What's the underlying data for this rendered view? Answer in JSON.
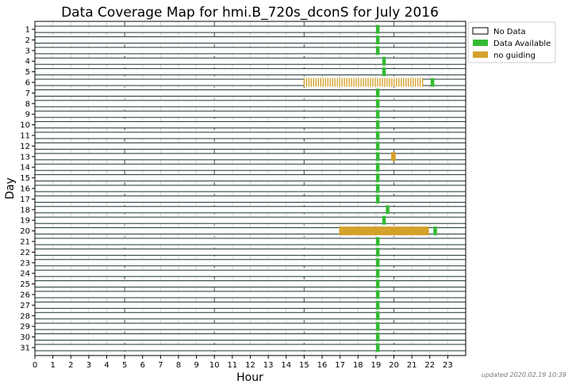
{
  "chart_data": {
    "type": "timeline",
    "title": "Data Coverage Map for hmi.B_720s_dconS for July 2016",
    "xlabel": "Hour",
    "ylabel": "Day",
    "xlim": [
      0,
      24
    ],
    "x_ticks": [
      "0",
      "1",
      "2",
      "3",
      "4",
      "5",
      "6",
      "7",
      "8",
      "9",
      "10",
      "11",
      "12",
      "13",
      "14",
      "15",
      "16",
      "17",
      "18",
      "19",
      "20",
      "21",
      "22",
      "23"
    ],
    "major_gridlines_x": [
      5,
      10,
      15,
      20
    ],
    "days": [
      "1",
      "2",
      "3",
      "4",
      "5",
      "6",
      "7",
      "8",
      "9",
      "10",
      "11",
      "12",
      "13",
      "14",
      "15",
      "16",
      "17",
      "18",
      "19",
      "20",
      "21",
      "22",
      "23",
      "24",
      "25",
      "26",
      "27",
      "28",
      "29",
      "30",
      "31"
    ],
    "legend": {
      "placement": "outside-top-right",
      "entries": [
        {
          "label": "No Data",
          "key": "nodata"
        },
        {
          "label": "Data Available",
          "key": "available"
        },
        {
          "label": "no guiding",
          "key": "noguiding"
        }
      ]
    },
    "colors": {
      "nodata": "#ffffff",
      "available": "#33bb33",
      "noguiding": "#d4a12a",
      "row_line": "#1a3333",
      "gridline": "#777777"
    },
    "segments": [
      {
        "day": 1,
        "status": "available",
        "start": 19.0,
        "end": 19.2
      },
      {
        "day": 2,
        "status": "available",
        "start": 19.0,
        "end": 19.2
      },
      {
        "day": 3,
        "status": "available",
        "start": 19.0,
        "end": 19.2
      },
      {
        "day": 4,
        "status": "available",
        "start": 19.35,
        "end": 19.55
      },
      {
        "day": 5,
        "status": "available",
        "start": 19.35,
        "end": 19.55
      },
      {
        "day": 6,
        "status": "noguiding",
        "start": 15.0,
        "end": 21.6,
        "striped": true
      },
      {
        "day": 6,
        "status": "available",
        "start": 22.05,
        "end": 22.25
      },
      {
        "day": 7,
        "status": "available",
        "start": 19.0,
        "end": 19.2
      },
      {
        "day": 8,
        "status": "available",
        "start": 19.0,
        "end": 19.2
      },
      {
        "day": 9,
        "status": "available",
        "start": 19.0,
        "end": 19.2
      },
      {
        "day": 10,
        "status": "available",
        "start": 19.0,
        "end": 19.2
      },
      {
        "day": 11,
        "status": "available",
        "start": 19.0,
        "end": 19.2
      },
      {
        "day": 12,
        "status": "available",
        "start": 19.0,
        "end": 19.2
      },
      {
        "day": 13,
        "status": "available",
        "start": 19.0,
        "end": 19.2
      },
      {
        "day": 13,
        "status": "noguiding",
        "start": 19.85,
        "end": 20.1
      },
      {
        "day": 14,
        "status": "available",
        "start": 19.0,
        "end": 19.2
      },
      {
        "day": 15,
        "status": "available",
        "start": 19.0,
        "end": 19.2
      },
      {
        "day": 16,
        "status": "available",
        "start": 19.0,
        "end": 19.2
      },
      {
        "day": 17,
        "status": "available",
        "start": 19.0,
        "end": 19.2
      },
      {
        "day": 18,
        "status": "available",
        "start": 19.55,
        "end": 19.75
      },
      {
        "day": 19,
        "status": "available",
        "start": 19.35,
        "end": 19.55
      },
      {
        "day": 20,
        "status": "noguiding",
        "start": 16.95,
        "end": 21.95
      },
      {
        "day": 20,
        "status": "available",
        "start": 22.2,
        "end": 22.4
      },
      {
        "day": 21,
        "status": "available",
        "start": 19.0,
        "end": 19.2
      },
      {
        "day": 22,
        "status": "available",
        "start": 19.0,
        "end": 19.2
      },
      {
        "day": 23,
        "status": "available",
        "start": 19.0,
        "end": 19.2
      },
      {
        "day": 24,
        "status": "available",
        "start": 19.0,
        "end": 19.2
      },
      {
        "day": 25,
        "status": "available",
        "start": 19.0,
        "end": 19.2
      },
      {
        "day": 26,
        "status": "available",
        "start": 19.0,
        "end": 19.2
      },
      {
        "day": 27,
        "status": "available",
        "start": 19.0,
        "end": 19.2
      },
      {
        "day": 28,
        "status": "available",
        "start": 19.0,
        "end": 19.2
      },
      {
        "day": 29,
        "status": "available",
        "start": 19.0,
        "end": 19.2
      },
      {
        "day": 30,
        "status": "available",
        "start": 19.0,
        "end": 19.2
      },
      {
        "day": 31,
        "status": "available",
        "start": 19.0,
        "end": 19.2
      }
    ]
  },
  "footer": {
    "updated": "updated 2020.02.19 10:39"
  }
}
